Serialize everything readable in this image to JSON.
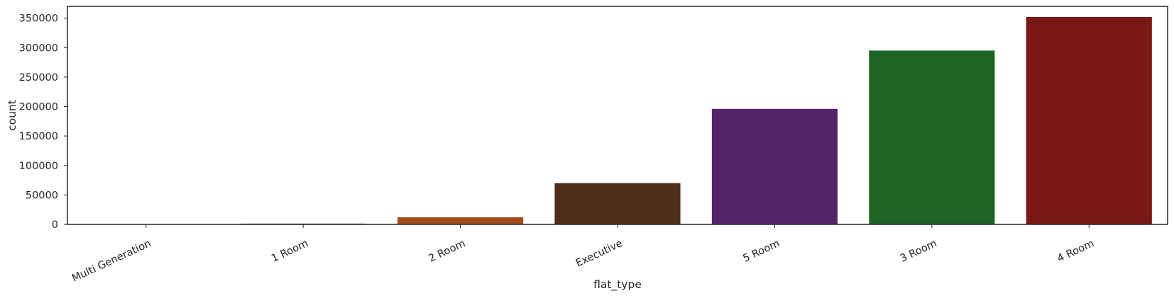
{
  "chart_data": {
    "type": "bar",
    "categories": [
      "Multi Generation",
      "1 Room",
      "2 Room",
      "Executive",
      "5 Room",
      "3 Room",
      "4 Room"
    ],
    "values": [
      500,
      1300,
      12000,
      70000,
      196000,
      295000,
      352000
    ],
    "colors": [
      "#1f3f6e",
      "#7f1a1a",
      "#a24a1c",
      "#4f2d18",
      "#542468",
      "#1e6424",
      "#7a1914"
    ],
    "xlabel": "flat_type",
    "ylabel": "count",
    "ylim": [
      0,
      370000
    ],
    "yticks": [
      0,
      50000,
      100000,
      150000,
      200000,
      250000,
      300000,
      350000
    ],
    "ytick_labels": [
      "0",
      "50000",
      "100000",
      "150000",
      "200000",
      "250000",
      "300000",
      "350000"
    ],
    "grid": false,
    "xtick_rotation_deg": 25
  }
}
